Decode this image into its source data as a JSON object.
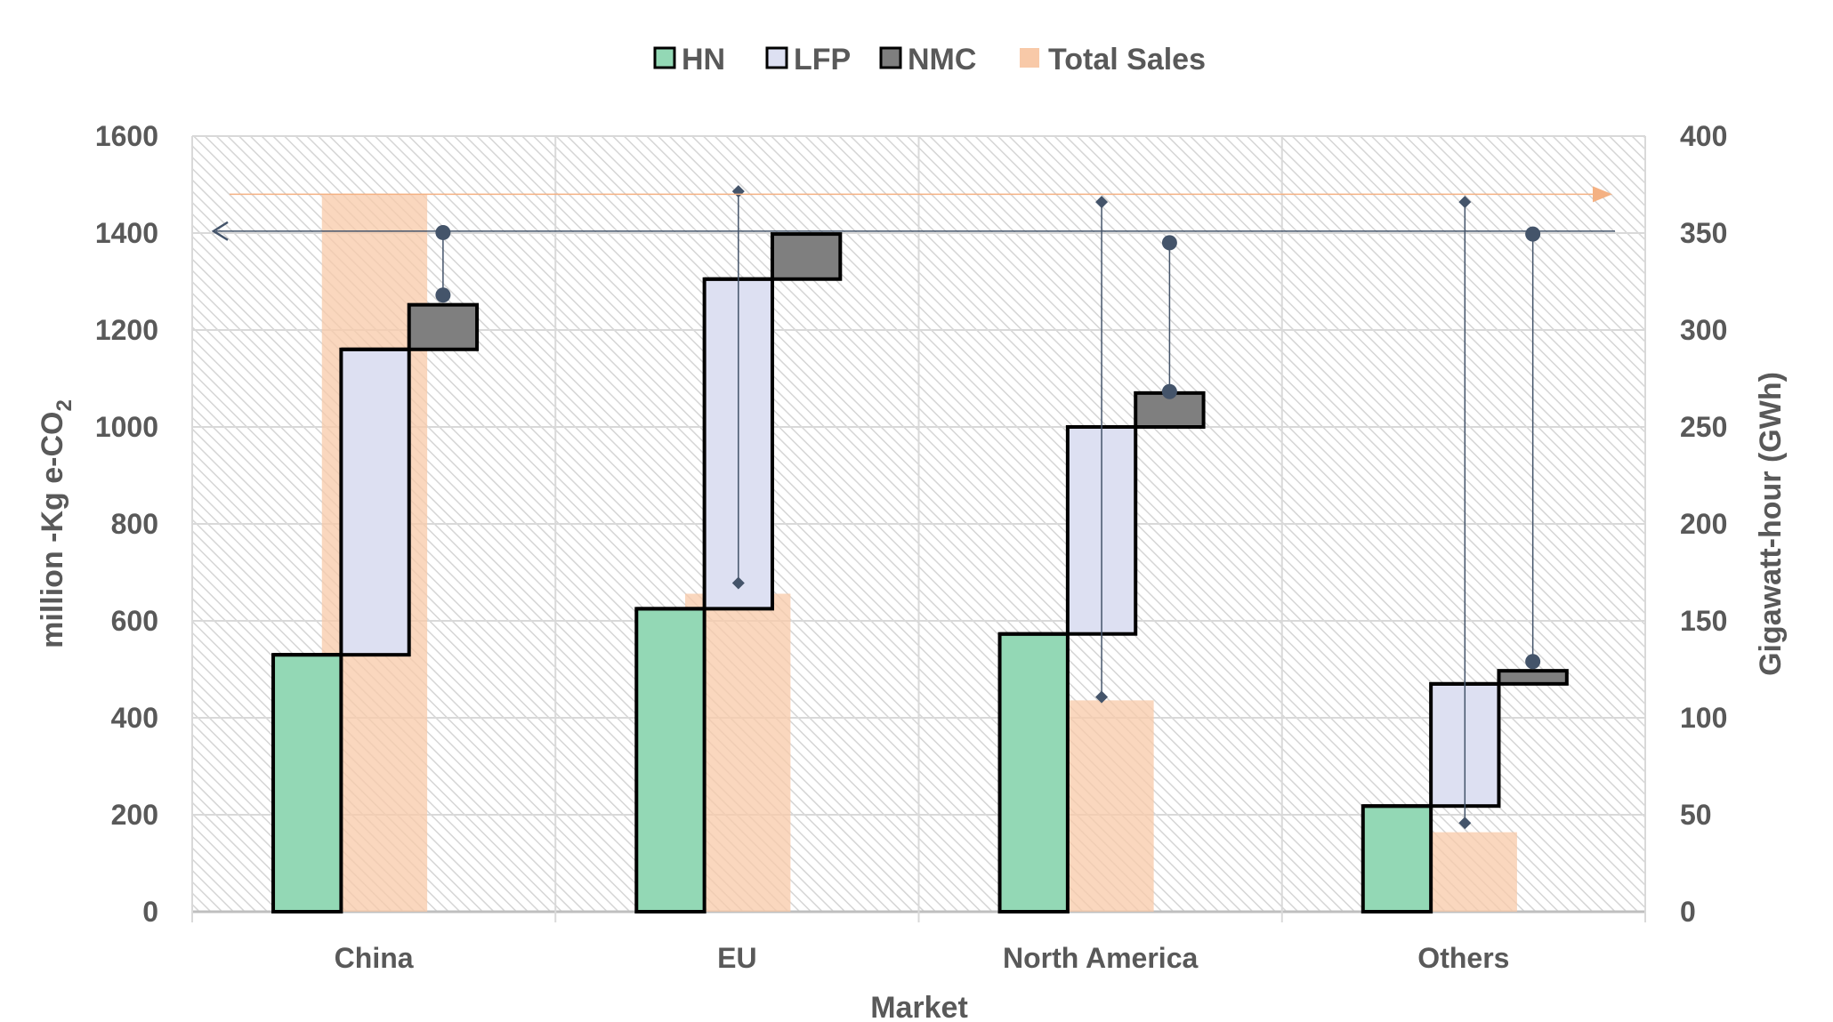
{
  "chart_data": {
    "type": "bar",
    "title": "",
    "xlabel": "Market",
    "ylabel": "million -Kg e-CO2",
    "ylabel_main": "million -Kg e-CO",
    "ylabel_sub": "2",
    "y2label": "Gigawatt-hour (GWh)",
    "categories": [
      "China",
      "EU",
      "North America",
      "Others"
    ],
    "ylim": [
      0,
      1600
    ],
    "y2lim": [
      0,
      400
    ],
    "yticks": [
      "0",
      "200",
      "400",
      "600",
      "800",
      "1000",
      "1200",
      "1400",
      "1600"
    ],
    "y2ticks": [
      "0",
      "50",
      "100",
      "150",
      "200",
      "250",
      "300",
      "350",
      "400"
    ],
    "legend_position": "top-center",
    "grid": true,
    "series": [
      {
        "name": "HN",
        "axis": "left",
        "color": "#93d8b5",
        "kind": "waterfall-step",
        "ranges": [
          [
            0,
            530
          ],
          [
            0,
            625
          ],
          [
            0,
            573
          ],
          [
            0,
            218
          ]
        ]
      },
      {
        "name": "LFP",
        "axis": "left",
        "color": "#dde0f2",
        "kind": "waterfall-step",
        "ranges": [
          [
            530,
            1160
          ],
          [
            625,
            1305
          ],
          [
            573,
            1000
          ],
          [
            218,
            470
          ]
        ]
      },
      {
        "name": "NMC",
        "axis": "left",
        "color": "#7f7f7f",
        "kind": "waterfall-step",
        "ranges": [
          [
            1160,
            1252
          ],
          [
            1305,
            1398
          ],
          [
            1000,
            1070
          ],
          [
            470,
            497
          ]
        ]
      },
      {
        "name": "Total Sales",
        "axis": "right",
        "color": "#f8c9a8",
        "kind": "bar",
        "values": [
          370,
          164,
          109,
          41
        ]
      }
    ],
    "lfp_markers": {
      "marker": "diamond",
      "axis": "left",
      "low": [
        null,
        678,
        443,
        183
      ],
      "high": [
        null,
        1486,
        1464,
        1464
      ]
    },
    "nmc_markers": {
      "marker": "circle",
      "axis": "left",
      "low": [
        1272,
        null,
        1073,
        516
      ],
      "high": [
        1401,
        null,
        1380,
        1398
      ]
    },
    "arrows": [
      {
        "name": "left-axis-arrow",
        "color": "#44546a",
        "direction": "left",
        "axis": "left",
        "value": 1404
      },
      {
        "name": "right-axis-arrow",
        "color": "#f4b183",
        "direction": "right",
        "axis": "right",
        "value": 370
      }
    ]
  }
}
